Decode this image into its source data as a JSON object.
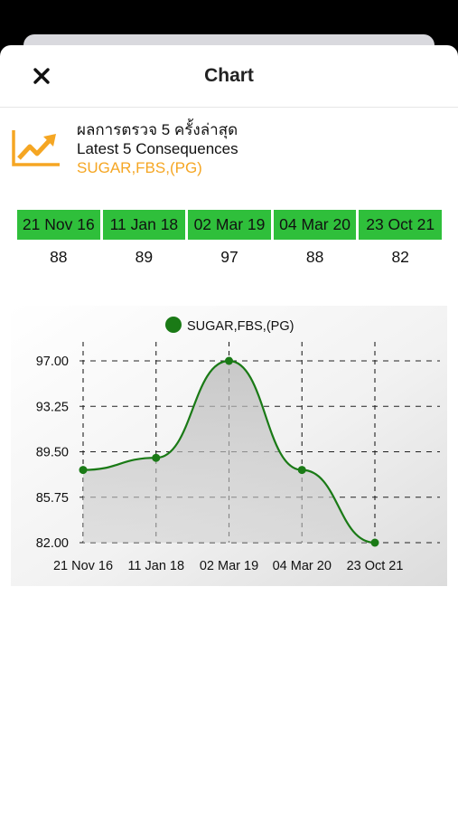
{
  "header": {
    "title": "Chart",
    "close_icon": "close-icon"
  },
  "info": {
    "icon": "trend-up-icon",
    "line1": "ผลการตรวจ 5 ครั้งล่าสุด",
    "line2": "Latest 5 Consequences",
    "line3": "SUGAR,FBS,(PG)",
    "accent_color": "#f5a623"
  },
  "results": [
    {
      "date": "21 Nov 16",
      "value": "88"
    },
    {
      "date": "11 Jan 18",
      "value": "89"
    },
    {
      "date": "02 Mar 19",
      "value": "97"
    },
    {
      "date": "04 Mar 20",
      "value": "88"
    },
    {
      "date": "23 Oct 21",
      "value": "82"
    }
  ],
  "colors": {
    "date_bg": "#2fbf3b",
    "series": "#1a7a16"
  },
  "chart_data": {
    "type": "area",
    "title": "",
    "xlabel": "",
    "ylabel": "",
    "categories": [
      "21 Nov 16",
      "11 Jan 18",
      "02 Mar 19",
      "04 Mar 20",
      "23 Oct 21"
    ],
    "series": [
      {
        "name": "SUGAR,FBS,(PG)",
        "values": [
          88,
          89,
          97,
          88,
          82
        ]
      }
    ],
    "ylim": [
      82,
      97
    ],
    "yticks": [
      "82.00",
      "85.75",
      "89.50",
      "93.25",
      "97.00"
    ],
    "grid": true,
    "legend": "top-center"
  }
}
